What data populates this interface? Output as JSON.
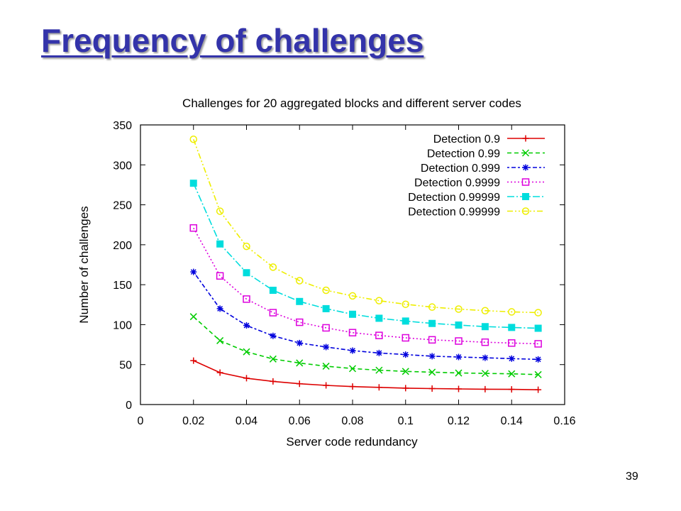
{
  "slide": {
    "title": "Frequency of challenges",
    "page_number": "39"
  },
  "chart_data": {
    "type": "line",
    "title": "Challenges for 20 aggregated blocks and different server codes",
    "xlabel": "Server code redundancy",
    "ylabel": "Number of challenges",
    "xlim": [
      0,
      0.16
    ],
    "ylim": [
      0,
      350
    ],
    "x_ticks": [
      "0",
      "0.02",
      "0.04",
      "0.06",
      "0.08",
      "0.1",
      "0.12",
      "0.14",
      "0.16"
    ],
    "y_ticks": [
      "0",
      "50",
      "100",
      "150",
      "200",
      "250",
      "300",
      "350"
    ],
    "grid": false,
    "legend_position": "top-right",
    "x": [
      0.02,
      0.03,
      0.04,
      0.05,
      0.06,
      0.07,
      0.08,
      0.09,
      0.1,
      0.11,
      0.12,
      0.13,
      0.14,
      0.15
    ],
    "series": [
      {
        "name": "Detection 0.9",
        "color": "#dd0000",
        "marker": "plus",
        "dash": "solid",
        "values": [
          55,
          40,
          33,
          29,
          26,
          24,
          22.5,
          21.5,
          20.5,
          20,
          19.5,
          19.2,
          19,
          18.5
        ]
      },
      {
        "name": "Detection 0.99",
        "color": "#00cc00",
        "marker": "cross",
        "dash": "dashed",
        "values": [
          110,
          80,
          66,
          57,
          52,
          48,
          45,
          43,
          41.5,
          40.5,
          39.5,
          39,
          38.5,
          37.5
        ]
      },
      {
        "name": "Detection 0.999",
        "color": "#0000dd",
        "marker": "asterisk",
        "dash": "dotted-dash",
        "values": [
          166,
          120,
          99,
          86,
          77,
          72,
          67.5,
          64.5,
          62.5,
          60.5,
          59.5,
          58.5,
          57.5,
          56.5
        ]
      },
      {
        "name": "Detection 0.9999",
        "color": "#dd00dd",
        "marker": "open-square",
        "dash": "dotted",
        "values": [
          221,
          161,
          132,
          115,
          103,
          96,
          90,
          86.5,
          83.5,
          81,
          79.5,
          78,
          77,
          76
        ]
      },
      {
        "name": "Detection 0.99999",
        "color": "#00dddd",
        "marker": "filled-square",
        "dash": "dash-dot",
        "values": [
          277,
          201,
          165,
          143,
          129,
          120,
          113,
          108,
          104.5,
          101.5,
          99.5,
          97.5,
          96.5,
          95.5
        ]
      },
      {
        "name": "Detection 0.99999",
        "color": "#eeee00",
        "marker": "open-circle",
        "dash": "dash-dot-dot",
        "values": [
          332,
          242,
          198,
          172,
          155,
          143,
          136,
          130,
          125.5,
          122,
          119.5,
          117.5,
          116,
          115
        ]
      }
    ]
  }
}
